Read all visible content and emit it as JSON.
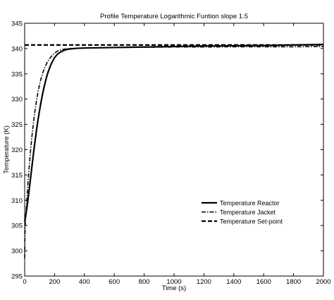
{
  "chart_data": {
    "type": "line",
    "title": "Profile Temperature Logarithmic Funtion slope 1.5",
    "xlabel": "Time (s)",
    "ylabel": "Temperature (K)",
    "xlim": [
      0,
      2000
    ],
    "ylim": [
      295,
      345
    ],
    "xticks": [
      0,
      200,
      400,
      600,
      800,
      1000,
      1200,
      1400,
      1600,
      1800,
      2000
    ],
    "yticks": [
      295,
      300,
      305,
      310,
      315,
      320,
      325,
      330,
      335,
      340,
      345
    ],
    "grid": false,
    "legend_position": "lower-right",
    "series": [
      {
        "name": "Temperature Reactor",
        "style": "solid",
        "color": "#000000",
        "x": [
          0,
          5,
          10,
          20,
          30,
          40,
          50,
          60,
          70,
          80,
          90,
          100,
          110,
          120,
          130,
          140,
          150,
          160,
          170,
          180,
          200,
          220,
          240,
          260,
          280,
          300,
          350,
          400,
          500,
          600,
          800,
          1000,
          1200,
          1400,
          1600,
          1800,
          2000
        ],
        "y": [
          305.8,
          306.6,
          307.5,
          309.6,
          312.0,
          314.5,
          317.0,
          319.5,
          321.8,
          324.0,
          326.0,
          327.8,
          329.5,
          331.0,
          332.4,
          333.6,
          334.7,
          335.6,
          336.4,
          337.1,
          338.2,
          338.9,
          339.3,
          339.6,
          339.8,
          339.9,
          340.05,
          340.1,
          340.15,
          340.2,
          340.3,
          340.4,
          340.5,
          340.55,
          340.6,
          340.7,
          340.8
        ]
      },
      {
        "name": "Temperature Jacket",
        "style": "dashdot",
        "color": "#000000",
        "x": [
          0,
          2,
          5,
          10,
          20,
          30,
          40,
          50,
          60,
          70,
          80,
          90,
          100,
          110,
          120,
          130,
          140,
          150,
          160,
          170,
          180,
          200,
          220,
          240,
          260,
          280,
          300,
          350,
          400,
          500,
          600,
          800,
          1000,
          1200,
          1400,
          1600,
          1800,
          2000
        ],
        "y": [
          298.5,
          303.0,
          305.8,
          308.0,
          312.5,
          316.5,
          320.0,
          323.0,
          325.6,
          327.9,
          329.8,
          331.5,
          332.9,
          334.1,
          335.1,
          335.9,
          336.6,
          337.2,
          337.7,
          338.1,
          338.5,
          339.1,
          339.5,
          339.7,
          339.85,
          339.95,
          340.0,
          340.05,
          340.1,
          340.15,
          340.2,
          340.25,
          340.3,
          340.3,
          340.35,
          340.35,
          340.35,
          340.4
        ]
      },
      {
        "name": "Temperature Set-point",
        "style": "dashed",
        "color": "#000000",
        "x": [
          0,
          2000
        ],
        "y": [
          340.7,
          340.7
        ]
      }
    ]
  }
}
